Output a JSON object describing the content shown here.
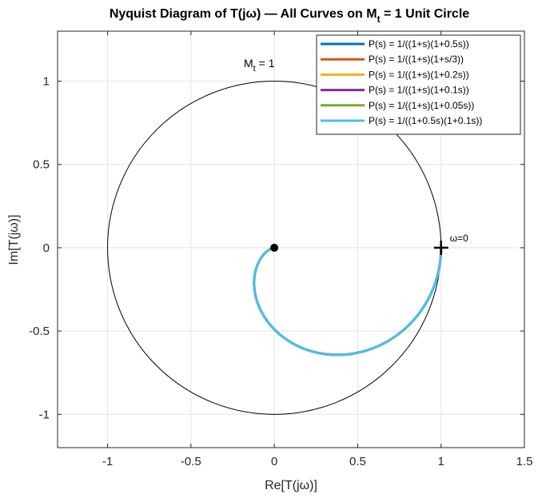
{
  "chart_data": {
    "type": "line",
    "title": "Nyquist Diagram of T(jω) — All Curves on M",
    "title_sub": "t",
    "title_tail": " = 1 Unit Circle",
    "xlabel": "Re[T(jω)]",
    "ylabel": "Im[T(jω)]",
    "xlim": [
      -1.3,
      1.5
    ],
    "ylim": [
      -1.2,
      1.3
    ],
    "xticks": [
      -1,
      -0.5,
      0,
      0.5,
      1,
      1.5
    ],
    "xtick_labels": [
      "-1",
      "-0.5",
      "0",
      "0.5",
      "1",
      "1.5"
    ],
    "yticks": [
      -1,
      -0.5,
      0,
      0.5,
      1
    ],
    "ytick_labels": [
      "-1",
      "-0.5",
      "0",
      "0.5",
      "1"
    ],
    "grid": true,
    "legend_position": "top-right",
    "circle": {
      "center": [
        0,
        0
      ],
      "radius": 1,
      "label_main": "M",
      "label_sub": "t",
      "label_tail": " = 1",
      "color": "#000000"
    },
    "annotation_omega0": {
      "text": "ω=0",
      "x": 1,
      "y": 0
    },
    "origin_point": {
      "x": 0,
      "y": 0
    },
    "series": [
      {
        "name": "P(s) = 1/((1+s)(1+0.5s))",
        "color": "#0072BD",
        "a": 1.5
      },
      {
        "name": "P(s) = 1/((1+s)(1+s/3))",
        "color": "#D95319",
        "a": 1.5
      },
      {
        "name": "P(s) = 1/((1+s)(1+0.2s))",
        "color": "#EDB120",
        "a": 1.5
      },
      {
        "name": "P(s) = 1/((1+s)(1+0.1s))",
        "color": "#7E2F8E",
        "a": 1.5
      },
      {
        "name": "P(s) = 1/((1+s)(1+0.05s))",
        "color": "#77AC30",
        "a": 1.5
      },
      {
        "name": "P(s) = 1/((1+0.5s)(1+0.1s))",
        "color": "#4DBEEE",
        "a": 1.5
      }
    ]
  }
}
